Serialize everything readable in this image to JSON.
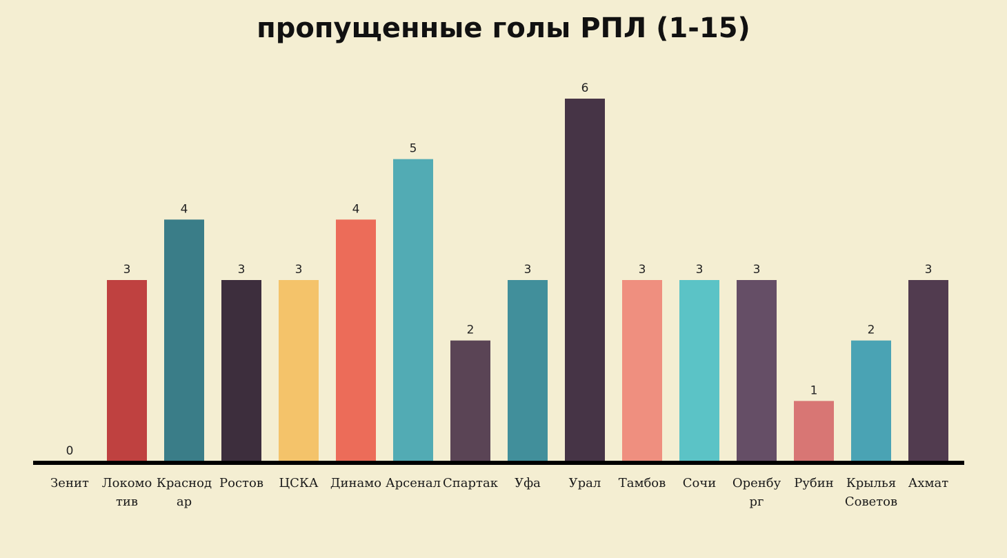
{
  "chart_data": {
    "type": "bar",
    "title": "пропущенные голы РПЛ  (1-15)",
    "categories": [
      [
        "Зенит"
      ],
      [
        "Локомо",
        "тив"
      ],
      [
        "Краснод",
        "ар"
      ],
      [
        "Ростов"
      ],
      [
        "ЦСКА"
      ],
      [
        "Динамо"
      ],
      [
        "Арсенал"
      ],
      [
        "Спартак"
      ],
      [
        "Уфа"
      ],
      [
        "Урал"
      ],
      [
        "Тамбов"
      ],
      [
        "Сочи"
      ],
      [
        "Оренбу",
        "рг"
      ],
      [
        "Рубин"
      ],
      [
        "Крылья",
        "Советов"
      ],
      [
        "Ахмат"
      ]
    ],
    "values": [
      0,
      3,
      4,
      3,
      3,
      4,
      5,
      2,
      3,
      6,
      3,
      3,
      3,
      1,
      2,
      3
    ],
    "colors": [
      "#c04040",
      "#bf4140",
      "#3a7d88",
      "#3d2e3d",
      "#f4c36a",
      "#ec6c59",
      "#52abb4",
      "#5a4455",
      "#418f9b",
      "#463446",
      "#ef8f7f",
      "#5bc3c6",
      "#654e66",
      "#d87674",
      "#4aa3b4",
      "#513b4f"
    ],
    "xlabel": "",
    "ylabel": "",
    "ylim": [
      0,
      6
    ],
    "grid": false,
    "legend": "none"
  }
}
